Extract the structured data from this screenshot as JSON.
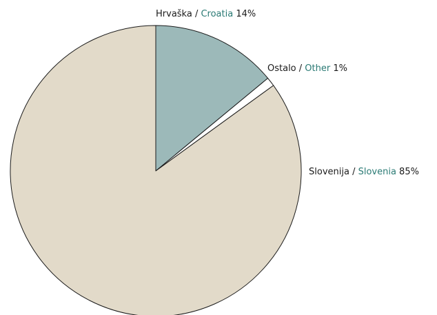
{
  "chart_data": {
    "type": "pie",
    "slices": [
      {
        "label_local": "Hrvaška",
        "label_en": "Croatia",
        "value": 14,
        "value_label": "14%",
        "color": "#9cb9b9"
      },
      {
        "label_local": "Ostalo",
        "label_en": "Other",
        "value": 1,
        "value_label": "1%",
        "color": "#ffffff"
      },
      {
        "label_local": "Slovenija",
        "label_en": "Slovenia",
        "value": 85,
        "value_label": "85%",
        "color": "#e2dac9"
      }
    ],
    "separator": " / ",
    "colors": {
      "stroke": "#1a1a1a",
      "english_text": "#2a7a74",
      "text": "#1a1a1a"
    }
  }
}
